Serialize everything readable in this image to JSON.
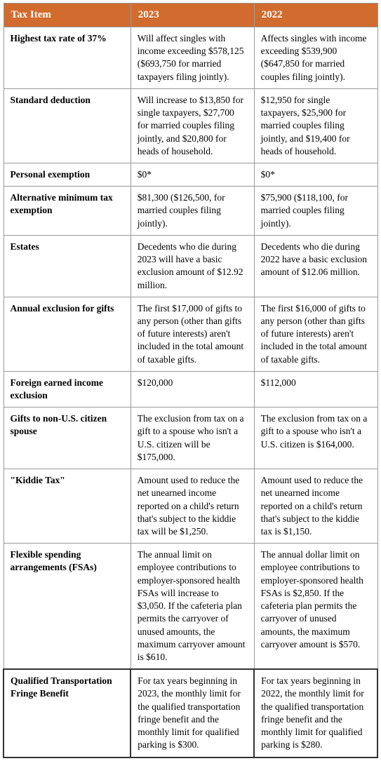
{
  "table": {
    "header_bg": "#d26b2e",
    "header_color": "#ffffff",
    "border_color": "#999999",
    "cell_font_size": 13.5,
    "header_font_size": 15,
    "columns": [
      "Tax Item",
      "2023",
      "2022"
    ],
    "rows": [
      {
        "item": "Highest tax rate of 37%",
        "y2023": "Will affect singles with income exceeding $578,125 ($693,750 for married taxpayers filing jointly).",
        "y2022": "Affects singles with income exceeding $539,900 ($647,850 for married couples filing jointly)."
      },
      {
        "item": "Standard deduction",
        "y2023": "Will increase to $13,850 for single taxpayers, $27,700 for married couples filing jointly, and $20,800 for heads of household.",
        "y2022": "$12,950 for single taxpayers, $25,900 for married couples filing jointly, and $19,400 for heads of household."
      },
      {
        "item": "Personal exemption",
        "y2023": "$0*",
        "y2022": "$0*"
      },
      {
        "item": "Alternative minimum tax exemption",
        "y2023": "$81,300 ($126,500, for married couples filing jointly).",
        "y2022": "$75,900 ($118,100, for married couples filing jointly)."
      },
      {
        "item": "Estates",
        "y2023": "Decedents who die during 2023 will have a basic exclusion amount of $12.92 million.",
        "y2022": "Decedents who die during 2022 have a basic exclusion amount of $12.06 million."
      },
      {
        "item": "Annual exclusion for gifts",
        "y2023": "The first $17,000 of gifts to any person (other than gifts of future interests) aren't included in the total amount of taxable gifts.",
        "y2022": "The first $16,000 of gifts to any person (other than gifts of future interests) aren't included in the total amount of taxable gifts."
      },
      {
        "item": "Foreign earned income exclusion",
        "y2023": "$120,000",
        "y2022": "$112,000"
      },
      {
        "item": "Gifts to non-U.S. citizen spouse",
        "y2023": "The exclusion from tax on a gift to a spouse who isn't a U.S. citizen will be $175,000.",
        "y2022": "The exclusion from tax on a gift to a spouse who isn't a U.S. citizen is $164,000."
      },
      {
        "item": "\"Kiddie Tax\"",
        "y2023": "Amount used to reduce the net unearned income reported on a child's return that's subject to the kiddie tax will be $1,250.",
        "y2022": "Amount used to reduce the net unearned income reported on a child's return that's subject to the kiddie tax is $1,150."
      },
      {
        "item": "Flexible spending arrangements (FSAs)",
        "y2023": "The annual limit on employee contributions to employer-sponsored health FSAs will increase to $3,050. If the cafeteria plan permits the carryover of unused amounts, the maximum carryover amount is $610.",
        "y2022": "The annual dollar limit on employee contributions to employer-sponsored health FSAs is $2,850. If the cafeteria plan permits the carryover of unused amounts, the maximum carryover amount is $570."
      },
      {
        "item": "Qualified Transportation Fringe Benefit",
        "y2023": "For tax years beginning in 2023, the monthly limit for the qualified transportation fringe benefit and the monthly limit for qualified parking is $300.",
        "y2022": "For tax years beginning in 2022, the monthly limit for the qualified transportation fringe benefit and the monthly limit for qualified parking is $280."
      }
    ]
  }
}
